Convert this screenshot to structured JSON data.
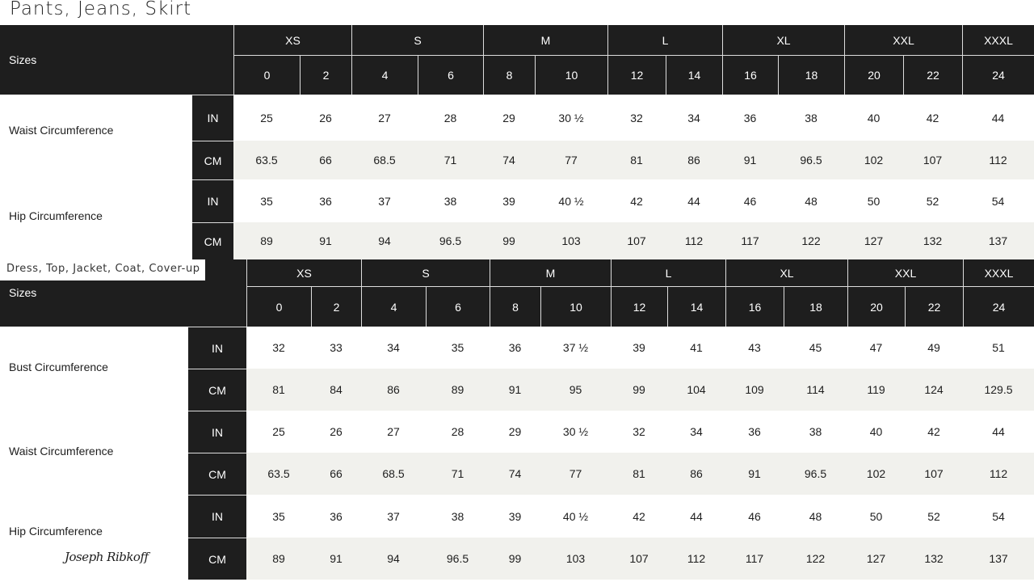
{
  "tables": [
    {
      "title": "Pants, Jeans, Skirt",
      "sizes_label": "Sizes",
      "groups": [
        "XS",
        "S",
        "M",
        "L",
        "XL",
        "XXL",
        "XXXL"
      ],
      "sizes": [
        "0",
        "2",
        "4",
        "6",
        "8",
        "10",
        "12",
        "14",
        "16",
        "18",
        "20",
        "22",
        "24"
      ],
      "measures": [
        {
          "label": "Waist Circumference",
          "rows": [
            {
              "unit": "IN",
              "values": [
                "25",
                "26",
                "27",
                "28",
                "29",
                "30 ½",
                "32",
                "34",
                "36",
                "38",
                "40",
                "42",
                "44"
              ]
            },
            {
              "unit": "CM",
              "values": [
                "63.5",
                "66",
                "68.5",
                "71",
                "74",
                "77",
                "81",
                "86",
                "91",
                "96.5",
                "102",
                "107",
                "112"
              ]
            }
          ]
        },
        {
          "label": "Hip Circumference",
          "rows": [
            {
              "unit": "IN",
              "values": [
                "35",
                "36",
                "37",
                "38",
                "39",
                "40 ½",
                "42",
                "44",
                "46",
                "48",
                "50",
                "52",
                "54"
              ]
            },
            {
              "unit": "CM",
              "values": [
                "89",
                "91",
                "94",
                "96.5",
                "99",
                "103",
                "107",
                "112",
                "117",
                "122",
                "127",
                "132",
                "137"
              ]
            }
          ]
        }
      ]
    },
    {
      "title": "Dress, Top, Jacket, Coat, Cover-up",
      "sizes_label": "Sizes",
      "groups": [
        "XS",
        "S",
        "M",
        "L",
        "XL",
        "XXL",
        "XXXL"
      ],
      "sizes": [
        "0",
        "2",
        "4",
        "6",
        "8",
        "10",
        "12",
        "14",
        "16",
        "18",
        "20",
        "22",
        "24"
      ],
      "measures": [
        {
          "label": "Bust Circumference",
          "rows": [
            {
              "unit": "IN",
              "values": [
                "32",
                "33",
                "34",
                "35",
                "36",
                "37 ½",
                "39",
                "41",
                "43",
                "45",
                "47",
                "49",
                "51"
              ]
            },
            {
              "unit": "CM",
              "values": [
                "81",
                "84",
                "86",
                "89",
                "91",
                "95",
                "99",
                "104",
                "109",
                "114",
                "119",
                "124",
                "129.5"
              ]
            }
          ]
        },
        {
          "label": "Waist Circumference",
          "rows": [
            {
              "unit": "IN",
              "values": [
                "25",
                "26",
                "27",
                "28",
                "29",
                "30 ½",
                "32",
                "34",
                "36",
                "38",
                "40",
                "42",
                "44"
              ]
            },
            {
              "unit": "CM",
              "values": [
                "63.5",
                "66",
                "68.5",
                "71",
                "74",
                "77",
                "81",
                "86",
                "91",
                "96.5",
                "102",
                "107",
                "112"
              ]
            }
          ]
        },
        {
          "label": "Hip Circumference",
          "rows": [
            {
              "unit": "IN",
              "values": [
                "35",
                "36",
                "37",
                "38",
                "39",
                "40 ½",
                "42",
                "44",
                "46",
                "48",
                "50",
                "52",
                "54"
              ]
            },
            {
              "unit": "CM",
              "values": [
                "89",
                "91",
                "94",
                "96.5",
                "99",
                "103",
                "107",
                "112",
                "117",
                "122",
                "127",
                "132",
                "137"
              ]
            }
          ]
        }
      ]
    }
  ],
  "brand": "Joseph Ribkoff",
  "colors": {
    "header": "#1e1e1e",
    "stripe": "#f1f1ed"
  }
}
